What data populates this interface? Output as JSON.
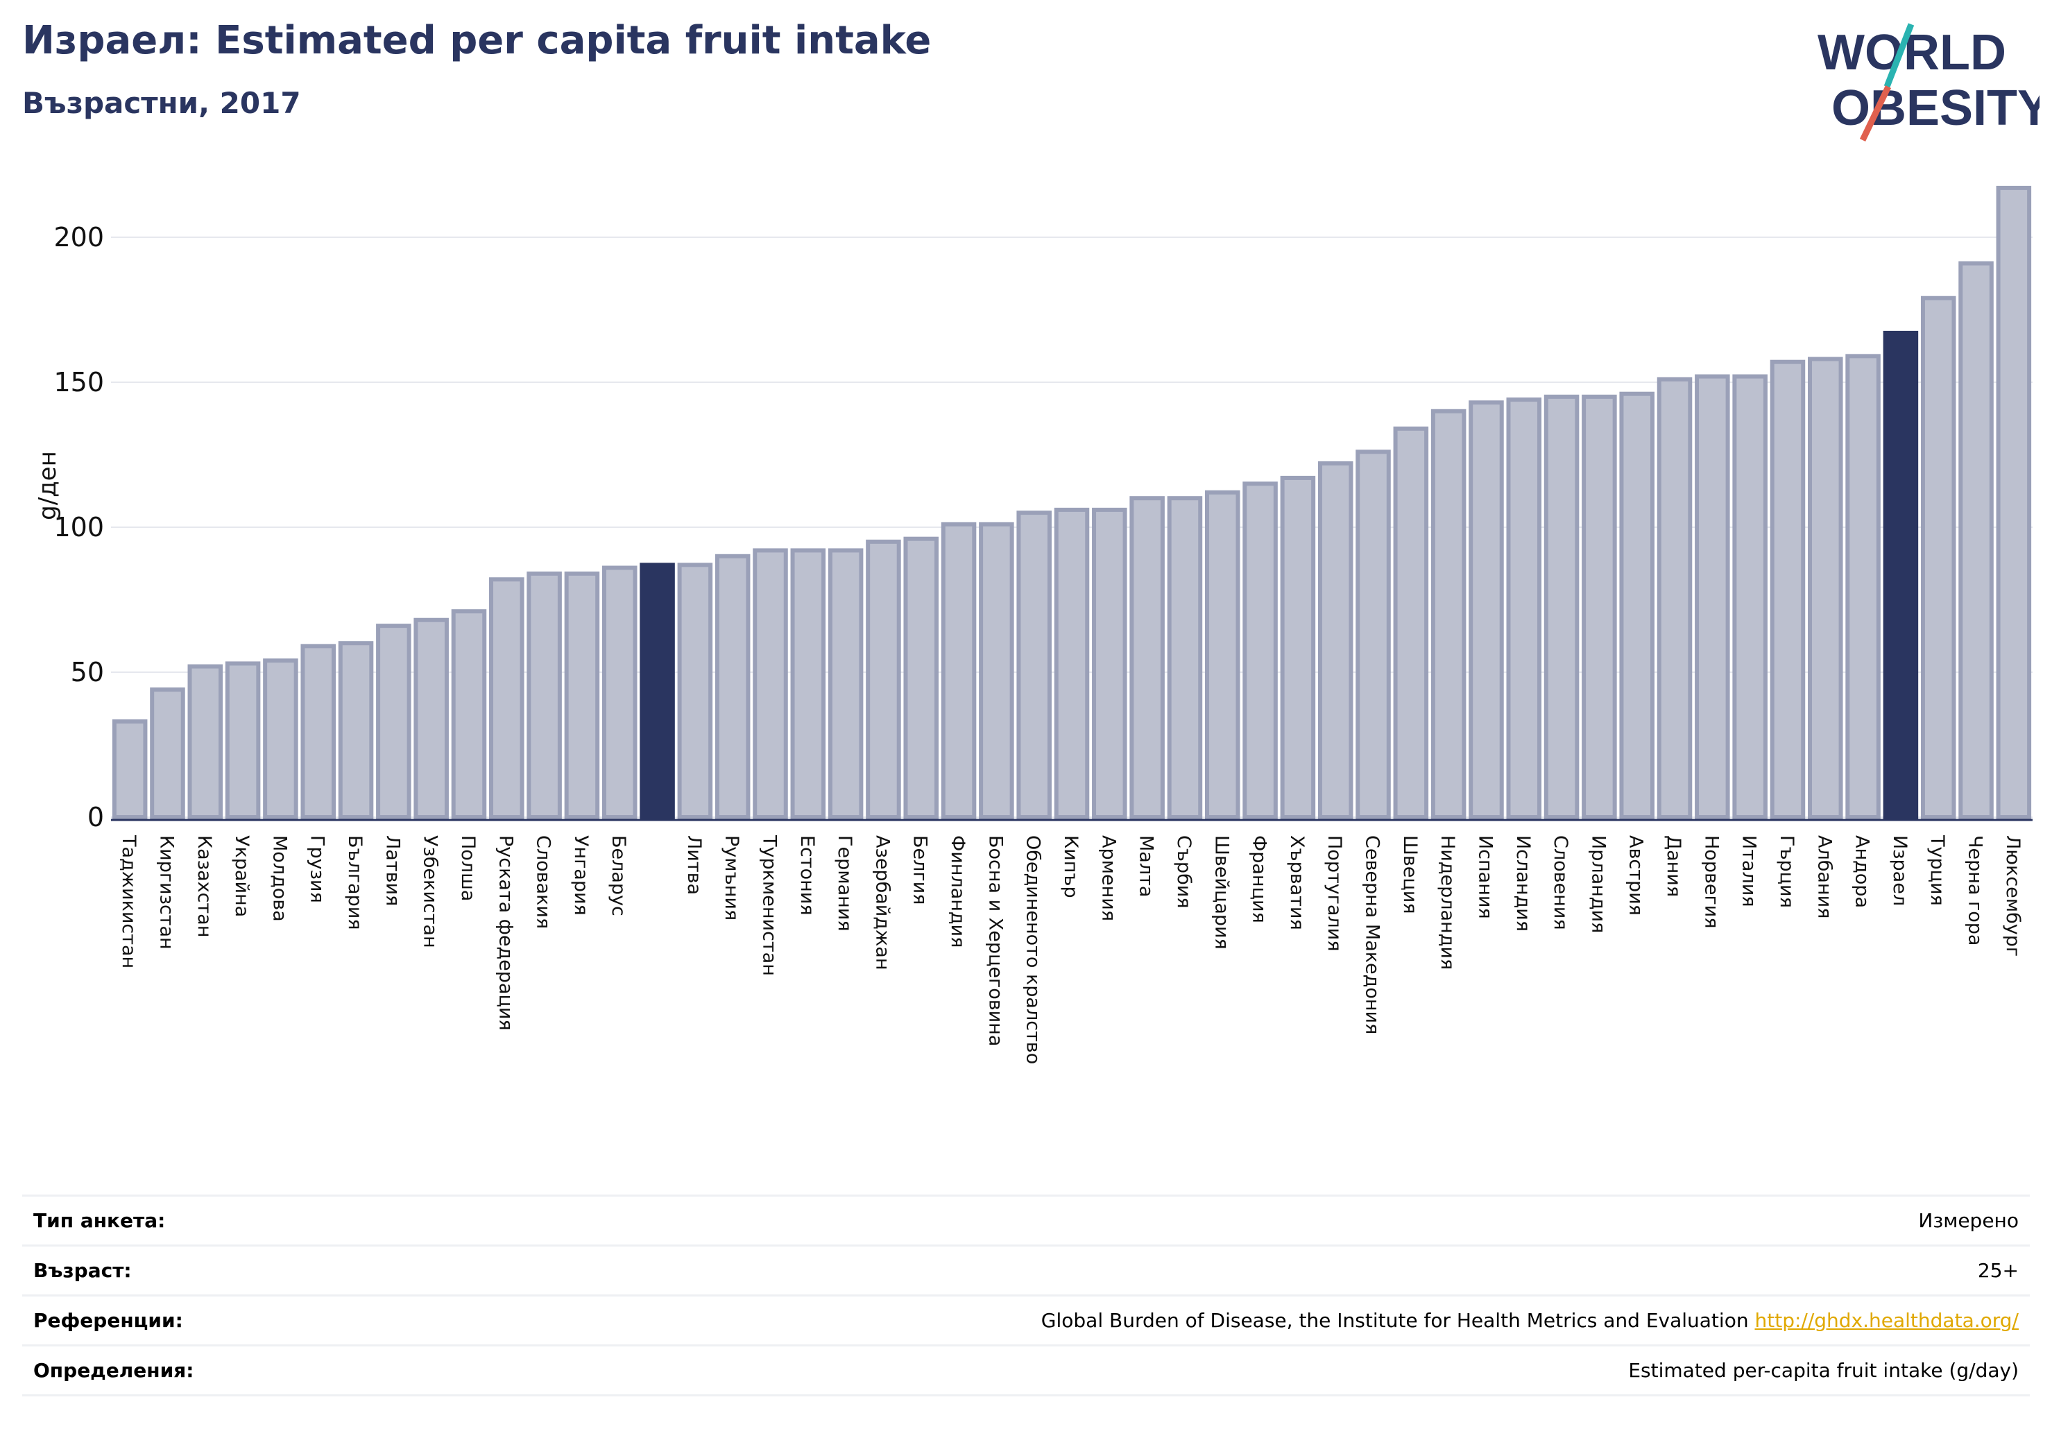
{
  "title": "Израел: Estimated per capita fruit intake",
  "subtitle": "Възрастни, 2017",
  "logo": {
    "line1": "WORLD",
    "line2": "OBESITY"
  },
  "colors": {
    "bar": "#bcc0cf",
    "bar_edge": "#9aa0b8",
    "highlight": "#2a3560",
    "title": "#2a3560",
    "link": "#e0a800"
  },
  "chart_data": {
    "type": "bar",
    "ylabel": "g/ден",
    "ylim": [
      0,
      222
    ],
    "yticks": [
      0,
      50,
      100,
      150,
      200
    ],
    "grid": true,
    "highlight_categories": [
      "Израел"
    ],
    "categories": [
      "Таджикистан",
      "Киргизстан",
      "Казахстан",
      "Украйна",
      "Молдова",
      "Грузия",
      "България",
      "Латвия",
      "Узбекистан",
      "Полша",
      "Руската федерация",
      "Словакия",
      "Унгария",
      "Беларус",
      "",
      "Литва",
      "Румъния",
      "Туркменистан",
      "Естония",
      "Германия",
      "Азербайджан",
      "Белгия",
      "Финландия",
      "Босна и Херцеговина",
      "Обединеното кралство",
      "Кипър",
      "Армения",
      "Малта",
      "Сърбия",
      "Швейцария",
      "Франция",
      "Хърватия",
      "Португалия",
      "Северна Македония",
      "Швеция",
      "Нидерландия",
      "Испания",
      "Исландия",
      "Словения",
      "Ирландия",
      "Австрия",
      "Дания",
      "Норвегия",
      "Италия",
      "Гърция",
      "Албания",
      "Андора",
      "Израел",
      "Турция",
      "Черна гора",
      "Люксембург"
    ],
    "values": [
      33,
      44,
      52,
      53,
      54,
      59,
      60,
      66,
      68,
      71,
      82,
      84,
      84,
      86,
      87,
      87,
      90,
      92,
      92,
      92,
      95,
      96,
      101,
      101,
      105,
      106,
      106,
      110,
      110,
      112,
      115,
      117,
      122,
      126,
      134,
      140,
      143,
      144,
      145,
      145,
      146,
      151,
      152,
      152,
      157,
      158,
      159,
      167,
      179,
      191,
      217
    ],
    "highlight_index": [
      14,
      47
    ]
  },
  "info": {
    "rows": [
      {
        "label": "Тип анкета:",
        "value": "Измерено"
      },
      {
        "label": "Възраст:",
        "value": "25+"
      },
      {
        "label": "Референции:",
        "value": "Global Burden of Disease, the Institute for Health Metrics and Evaluation",
        "link": "http://ghdx.healthdata.org/"
      },
      {
        "label": "Определения:",
        "value": "Estimated per-capita fruit intake (g/day)"
      }
    ]
  }
}
